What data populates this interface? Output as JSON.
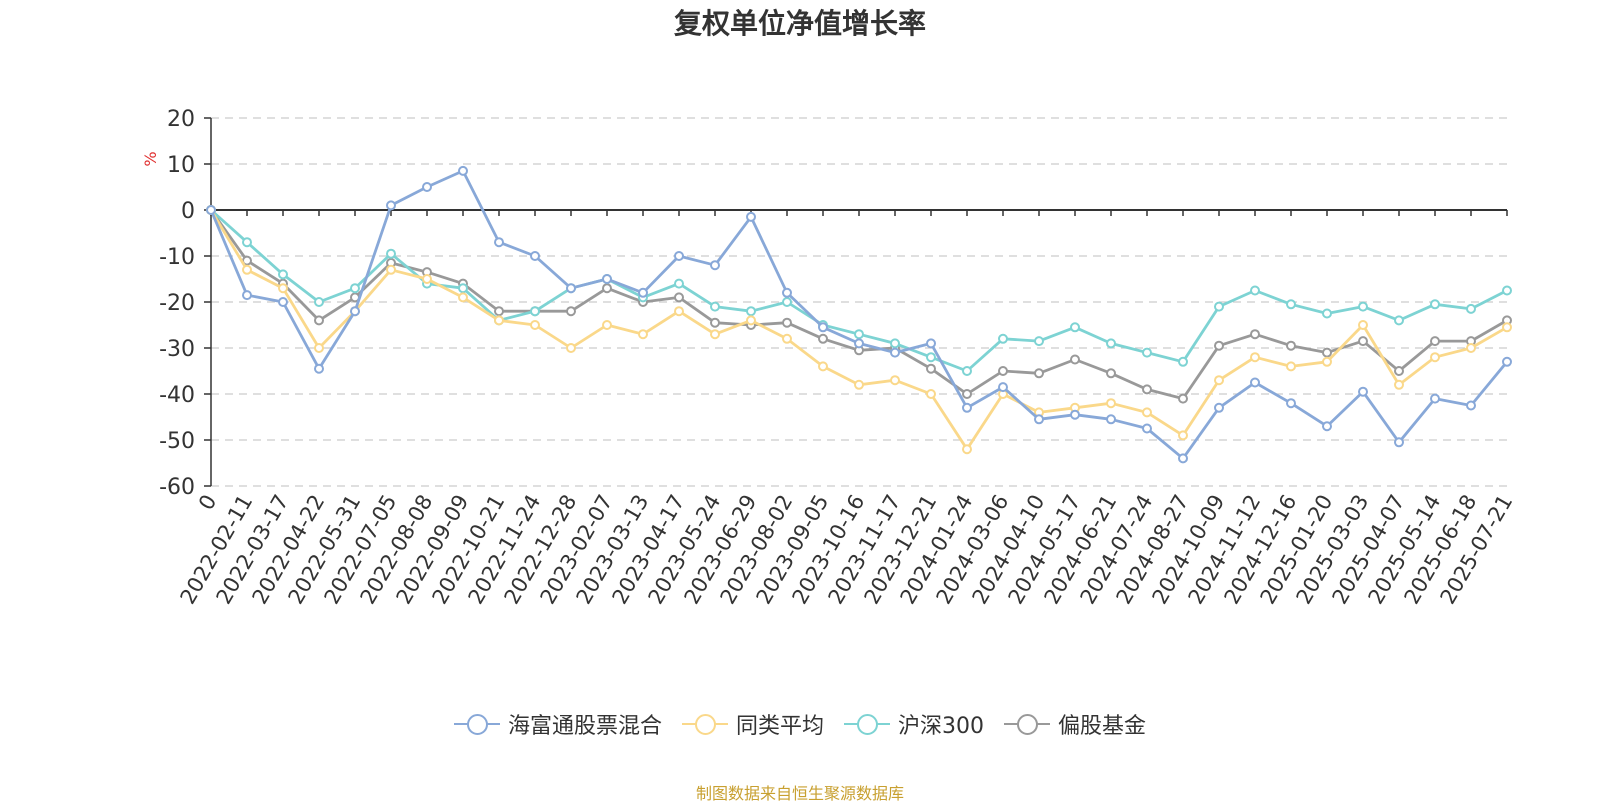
{
  "title": "复权单位净值增长率",
  "source": "制图数据来自恒生聚源数据库",
  "colors": {
    "haifutong": "#88a8d8",
    "category_avg": "#fad88a",
    "hs300": "#7dd3d3",
    "equity_fund": "#999999",
    "source_text": "#c8a030",
    "unit": "#e03030",
    "axis": "#333333",
    "grid": "#cccccc"
  },
  "chart_data": {
    "type": "line",
    "title": "复权单位净值增长率",
    "ylabel": "%",
    "ylim": [
      -60,
      20
    ],
    "yticks": [
      20,
      10,
      0,
      -10,
      -20,
      -30,
      -40,
      -50,
      -60
    ],
    "grid": true,
    "legend_position": "bottom",
    "x": [
      "0",
      "2022-02-11",
      "2022-03-17",
      "2022-04-22",
      "2022-05-31",
      "2022-07-05",
      "2022-08-08",
      "2022-09-09",
      "2022-10-21",
      "2022-11-24",
      "2022-12-28",
      "2023-02-07",
      "2023-03-13",
      "2023-04-17",
      "2023-05-24",
      "2023-06-29",
      "2023-08-02",
      "2023-09-05",
      "2023-10-16",
      "2023-11-17",
      "2023-12-21",
      "2024-01-24",
      "2024-03-06",
      "2024-04-10",
      "2024-05-17",
      "2024-06-21",
      "2024-07-24",
      "2024-08-27",
      "2024-10-09",
      "2024-11-12",
      "2024-12-16",
      "2025-01-20",
      "2025-03-03",
      "2025-04-07",
      "2025-05-14",
      "2025-06-18",
      "2025-07-21"
    ],
    "series": [
      {
        "name": "海富通股票混合",
        "color_key": "haifutong",
        "values": [
          0,
          -18.5,
          -20,
          -34.5,
          -22,
          1,
          5,
          8.5,
          -7,
          -10,
          -17,
          -15,
          -18,
          -10,
          -12,
          -1.5,
          -18,
          -25.5,
          -29,
          -31,
          -29,
          -43,
          -38.5,
          -45.5,
          -44.5,
          -45.5,
          -47.5,
          -54,
          -43,
          -37.5,
          -42,
          -47,
          -39.5,
          -50.5,
          -41,
          -42.5,
          -33
        ]
      },
      {
        "name": "同类平均",
        "color_key": "category_avg",
        "values": [
          0,
          -13,
          -17,
          -30,
          -22,
          -13,
          -15,
          -19,
          -24,
          -25,
          -30,
          -25,
          -27,
          -22,
          -27,
          -24,
          -28,
          -34,
          -38,
          -37,
          -40,
          -52,
          -40,
          -44,
          -43,
          -42,
          -44,
          -49,
          -37,
          -32,
          -34,
          -33,
          -25,
          -38,
          -32,
          -30,
          -25.5
        ]
      },
      {
        "name": "沪深300",
        "color_key": "hs300",
        "values": [
          0,
          -7,
          -14,
          -20,
          -17,
          -9.5,
          -16,
          -17,
          -24,
          -22,
          -17,
          -15,
          -19,
          -16,
          -21,
          -22,
          -20,
          -25,
          -27,
          -29,
          -32,
          -35,
          -28,
          -28.5,
          -25.5,
          -29,
          -31,
          -33,
          -21,
          -17.5,
          -20.5,
          -22.5,
          -21,
          -24,
          -20.5,
          -21.5,
          -17.5
        ]
      },
      {
        "name": "偏股基金",
        "color_key": "equity_fund",
        "values": [
          0,
          -11,
          -16,
          -24,
          -19,
          -11.5,
          -13.5,
          -16,
          -22,
          -22,
          -22,
          -17,
          -20,
          -19,
          -24.5,
          -25,
          -24.5,
          -28,
          -30.5,
          -30,
          -34.5,
          -40,
          -35,
          -35.5,
          -32.5,
          -35.5,
          -39,
          -41,
          -29.5,
          -27,
          -29.5,
          -31,
          -28.5,
          -35,
          -28.5,
          -28.5,
          -24
        ]
      }
    ]
  },
  "legend": [
    {
      "label": "海富通股票混合",
      "color_key": "haifutong"
    },
    {
      "label": "同类平均",
      "color_key": "category_avg"
    },
    {
      "label": "沪深300",
      "color_key": "hs300"
    },
    {
      "label": "偏股基金",
      "color_key": "equity_fund"
    }
  ]
}
